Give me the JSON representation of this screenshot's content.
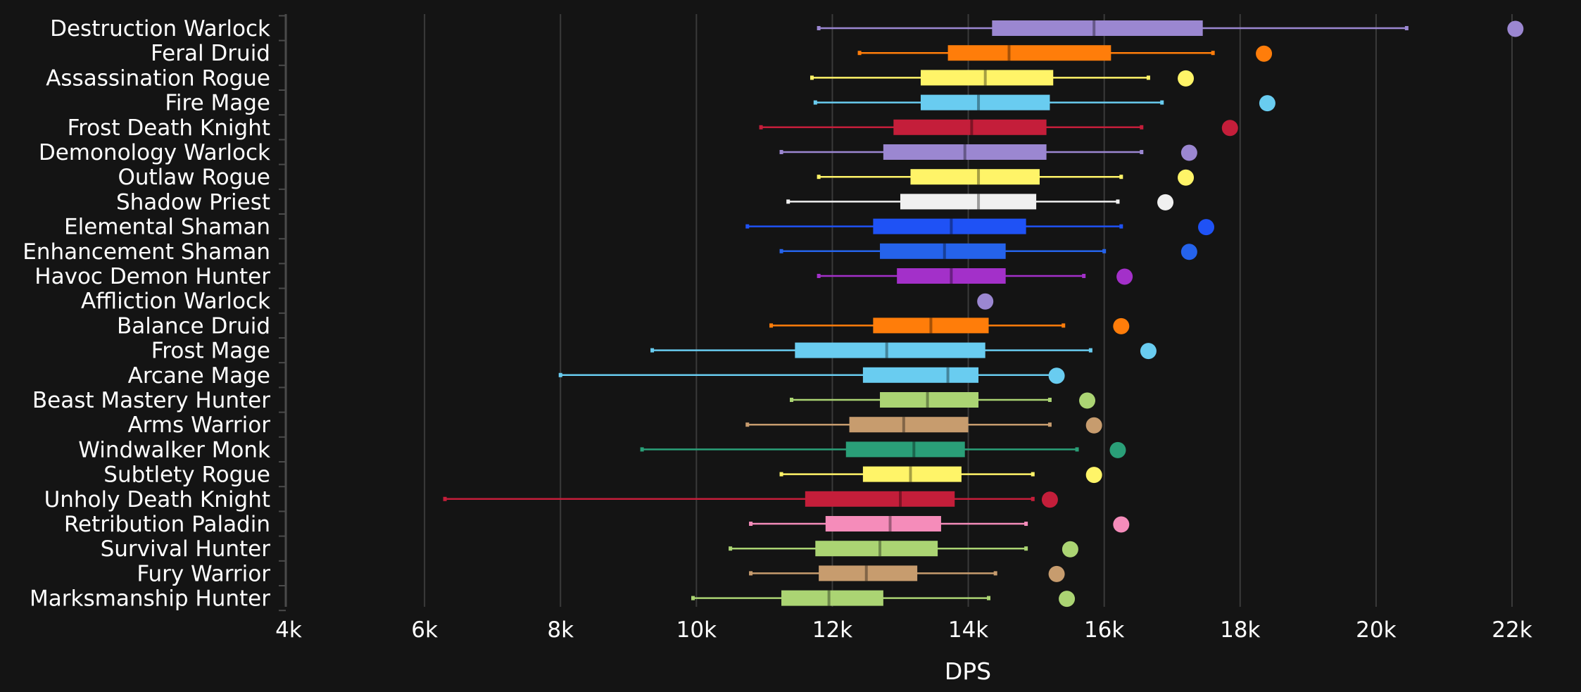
{
  "chart_data": {
    "type": "box",
    "xlabel": "DPS",
    "xlim": [
      4000,
      22800
    ],
    "x_ticks": [
      4000,
      6000,
      8000,
      10000,
      12000,
      14000,
      16000,
      18000,
      20000,
      22000
    ],
    "x_tick_labels": [
      "4k",
      "6k",
      "8k",
      "10k",
      "12k",
      "14k",
      "16k",
      "18k",
      "20k",
      "22k"
    ],
    "grid": "vertical",
    "categories": [
      {
        "name": "Destruction Warlock",
        "color": "#9b87d1",
        "min": 11800,
        "q1": 14350,
        "median": 15850,
        "q3": 17450,
        "max": 20450,
        "max_point": 22050
      },
      {
        "name": "Feral Druid",
        "color": "#ff7d0a",
        "min": 12400,
        "q1": 13700,
        "median": 14600,
        "q3": 16100,
        "max": 17600,
        "max_point": 18350
      },
      {
        "name": "Assassination Rogue",
        "color": "#fff468",
        "min": 11700,
        "q1": 13300,
        "median": 14250,
        "q3": 15250,
        "max": 16650,
        "max_point": 17200
      },
      {
        "name": "Fire Mage",
        "color": "#69ccf0",
        "min": 11750,
        "q1": 13300,
        "median": 14150,
        "q3": 15200,
        "max": 16850,
        "max_point": 18400
      },
      {
        "name": "Frost Death Knight",
        "color": "#c41e3a",
        "min": 10950,
        "q1": 12900,
        "median": 14050,
        "q3": 15150,
        "max": 16550,
        "max_point": 17850
      },
      {
        "name": "Demonology Warlock",
        "color": "#9b87d1",
        "min": 11250,
        "q1": 12750,
        "median": 13950,
        "q3": 15150,
        "max": 16550,
        "max_point": 17250
      },
      {
        "name": "Outlaw Rogue",
        "color": "#fff468",
        "min": 11800,
        "q1": 13150,
        "median": 14150,
        "q3": 15050,
        "max": 16250,
        "max_point": 17200
      },
      {
        "name": "Shadow Priest",
        "color": "#f0f0f0",
        "min": 11350,
        "q1": 13000,
        "median": 14150,
        "q3": 15000,
        "max": 16200,
        "max_point": 16900
      },
      {
        "name": "Elemental Shaman",
        "color": "#1f52f5",
        "min": 10750,
        "q1": 12600,
        "median": 13750,
        "q3": 14850,
        "max": 16250,
        "max_point": 17500
      },
      {
        "name": "Enhancement Shaman",
        "color": "#2563eb",
        "min": 11250,
        "q1": 12700,
        "median": 13650,
        "q3": 14550,
        "max": 16000,
        "max_point": 17250
      },
      {
        "name": "Havoc Demon Hunter",
        "color": "#a330c9",
        "min": 11800,
        "q1": 12950,
        "median": 13750,
        "q3": 14550,
        "max": 15700,
        "max_point": 16300
      },
      {
        "name": "Affliction Warlock",
        "color": "#9b87d1",
        "min": 14250,
        "q1": 14250,
        "median": 14250,
        "q3": 14250,
        "max": 14250,
        "max_point": 14250
      },
      {
        "name": "Balance Druid",
        "color": "#ff7d0a",
        "min": 11100,
        "q1": 12600,
        "median": 13450,
        "q3": 14300,
        "max": 15400,
        "max_point": 16250
      },
      {
        "name": "Frost Mage",
        "color": "#69ccf0",
        "min": 9350,
        "q1": 11450,
        "median": 12800,
        "q3": 14250,
        "max": 15800,
        "max_point": 16650
      },
      {
        "name": "Arcane Mage",
        "color": "#69ccf0",
        "min": 8000,
        "q1": 12450,
        "median": 13700,
        "q3": 14150,
        "max": 15300,
        "max_point": 15300
      },
      {
        "name": "Beast Mastery Hunter",
        "color": "#abd473",
        "min": 11400,
        "q1": 12700,
        "median": 13400,
        "q3": 14150,
        "max": 15200,
        "max_point": 15750
      },
      {
        "name": "Arms Warrior",
        "color": "#c79c6e",
        "min": 10750,
        "q1": 12250,
        "median": 13050,
        "q3": 14000,
        "max": 15200,
        "max_point": 15850
      },
      {
        "name": "Windwalker Monk",
        "color": "#2a9f78",
        "min": 9200,
        "q1": 12200,
        "median": 13200,
        "q3": 13950,
        "max": 15600,
        "max_point": 16200
      },
      {
        "name": "Subtlety Rogue",
        "color": "#fff468",
        "min": 11250,
        "q1": 12450,
        "median": 13150,
        "q3": 13900,
        "max": 14950,
        "max_point": 15850
      },
      {
        "name": "Unholy Death Knight",
        "color": "#c41e3a",
        "min": 6300,
        "q1": 11600,
        "median": 13000,
        "q3": 13800,
        "max": 14950,
        "max_point": 15200
      },
      {
        "name": "Retribution Paladin",
        "color": "#f58cba",
        "min": 10800,
        "q1": 11900,
        "median": 12850,
        "q3": 13600,
        "max": 14850,
        "max_point": 16250
      },
      {
        "name": "Survival Hunter",
        "color": "#abd473",
        "min": 10500,
        "q1": 11750,
        "median": 12700,
        "q3": 13550,
        "max": 14850,
        "max_point": 15500
      },
      {
        "name": "Fury Warrior",
        "color": "#c79c6e",
        "min": 10800,
        "q1": 11800,
        "median": 12500,
        "q3": 13250,
        "max": 14400,
        "max_point": 15300
      },
      {
        "name": "Marksmanship Hunter",
        "color": "#abd473",
        "min": 9950,
        "q1": 11250,
        "median": 11950,
        "q3": 12750,
        "max": 14300,
        "max_point": 15450
      }
    ]
  },
  "style": {
    "background": "#141414",
    "grid_color": "#3a3a3a",
    "axis_color": "#4a4a4a",
    "text_color": "#ffffff"
  }
}
